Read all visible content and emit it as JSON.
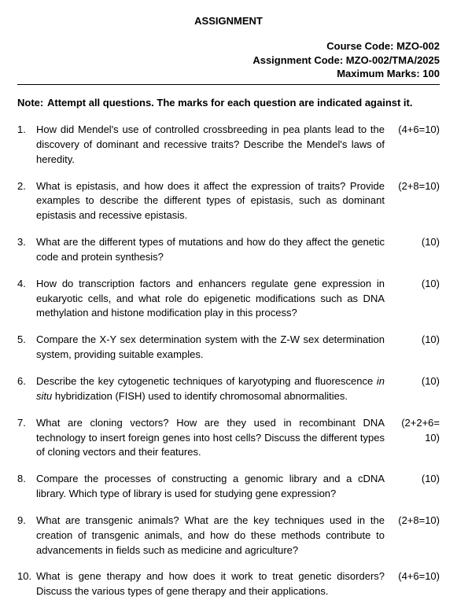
{
  "title": "ASSIGNMENT",
  "header": {
    "course_code_label": "Course Code:",
    "course_code": "MZO-002",
    "assignment_code_label": "Assignment Code:",
    "assignment_code": "MZO-002/TMA/2025",
    "max_marks_label": "Maximum Marks:",
    "max_marks": "100"
  },
  "note_label": "Note:",
  "note_text": "Attempt all questions. The marks for each question are indicated against it.",
  "questions": [
    {
      "num": "1.",
      "text": "How did Mendel's use of controlled crossbreeding in pea plants lead to the discovery of dominant and recessive traits? Describe the Mendel's laws of heredity.",
      "marks": "(4+6=10)"
    },
    {
      "num": "2.",
      "text": "What is epistasis, and how does it affect the expression of traits? Provide examples to describe the different types of epistasis, such as dominant epistasis and recessive epistasis.",
      "marks": "(2+8=10)"
    },
    {
      "num": "3.",
      "text": "What are the different types of mutations and how do they affect the genetic code and protein synthesis?",
      "marks": "(10)"
    },
    {
      "num": "4.",
      "text": "How do transcription factors and enhancers regulate gene expression in eukaryotic cells, and what role do epigenetic modifications such as DNA methylation and histone modification play in this process?",
      "marks": "(10)"
    },
    {
      "num": "5.",
      "text": "Compare the X-Y sex determination system with the Z-W sex determination system, providing suitable examples.",
      "marks": "(10)"
    },
    {
      "num": "6.",
      "text_pre": "Describe the key cytogenetic techniques of karyotyping and fluorescence ",
      "text_italic": "in situ",
      "text_post": " hybridization (FISH) used to identify chromosomal abnormalities.",
      "marks": "(10)"
    },
    {
      "num": "7.",
      "text": "What are cloning vectors? How are they used in recombinant DNA technology to insert foreign genes into host cells? Discuss the different types of cloning vectors and their features.",
      "marks": "(2+2+6= 10)"
    },
    {
      "num": "8.",
      "text": "Compare the processes of constructing a genomic library and a cDNA library. Which type of library is used for studying gene expression?",
      "marks": "(10)"
    },
    {
      "num": "9.",
      "text": "What are transgenic animals? What are the key techniques used in the creation of transgenic animals, and how do these methods contribute to advancements in fields such as medicine and agriculture?",
      "marks": "(2+8=10)"
    },
    {
      "num": "10.",
      "text": "What is gene therapy and how does it work to treat genetic disorders? Discuss the various types of gene therapy and their applications.",
      "marks": "(4+6=10)"
    }
  ]
}
